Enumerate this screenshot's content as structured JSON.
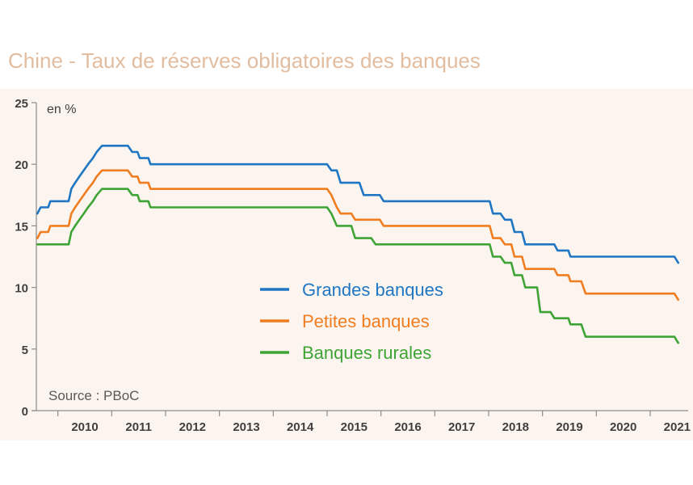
{
  "title": "Chine - Taux de réserves obligatoires des banques",
  "unit_label": "en %",
  "source": "Source : PBoC",
  "chart_data": {
    "type": "line",
    "title": "Chine - Taux de réserves obligatoires des banques",
    "ylabel": "en %",
    "xlabel": "",
    "ylim": [
      0,
      25
    ],
    "xlim": [
      2009.6,
      2021.6
    ],
    "y_ticks": [
      0,
      5,
      10,
      15,
      20,
      25
    ],
    "x_tick_labels": [
      "2010",
      "2011",
      "2012",
      "2013",
      "2014",
      "2015",
      "2016",
      "2017",
      "2018",
      "2019",
      "2020",
      "2021"
    ],
    "legend_position": "center-right",
    "grid": false,
    "series": [
      {
        "name": "Grandes banques",
        "color": "#1f77c4",
        "points": [
          [
            2009.62,
            16.0
          ],
          [
            2009.68,
            16.5
          ],
          [
            2009.82,
            16.5
          ],
          [
            2009.86,
            17.0
          ],
          [
            2010.2,
            17.0
          ],
          [
            2010.25,
            18.0
          ],
          [
            2010.32,
            18.5
          ],
          [
            2010.4,
            19.0
          ],
          [
            2010.48,
            19.5
          ],
          [
            2010.56,
            20.0
          ],
          [
            2010.65,
            20.5
          ],
          [
            2010.72,
            21.0
          ],
          [
            2010.82,
            21.5
          ],
          [
            2011.3,
            21.5
          ],
          [
            2011.38,
            21.0
          ],
          [
            2011.48,
            21.0
          ],
          [
            2011.52,
            20.5
          ],
          [
            2011.68,
            20.5
          ],
          [
            2011.72,
            20.0
          ],
          [
            2015.0,
            20.0
          ],
          [
            2015.08,
            19.5
          ],
          [
            2015.18,
            19.5
          ],
          [
            2015.25,
            18.5
          ],
          [
            2015.6,
            18.5
          ],
          [
            2015.68,
            17.5
          ],
          [
            2015.98,
            17.5
          ],
          [
            2016.05,
            17.0
          ],
          [
            2018.02,
            17.0
          ],
          [
            2018.08,
            16.0
          ],
          [
            2018.22,
            16.0
          ],
          [
            2018.3,
            15.5
          ],
          [
            2018.42,
            15.5
          ],
          [
            2018.48,
            14.5
          ],
          [
            2018.62,
            14.5
          ],
          [
            2018.68,
            13.5
          ],
          [
            2019.22,
            13.5
          ],
          [
            2019.28,
            13.0
          ],
          [
            2019.48,
            13.0
          ],
          [
            2019.52,
            12.5
          ],
          [
            2021.45,
            12.5
          ],
          [
            2021.52,
            12.0
          ]
        ]
      },
      {
        "name": "Petites banques",
        "color": "#f07d1f",
        "points": [
          [
            2009.62,
            14.0
          ],
          [
            2009.68,
            14.5
          ],
          [
            2009.82,
            14.5
          ],
          [
            2009.86,
            15.0
          ],
          [
            2010.2,
            15.0
          ],
          [
            2010.25,
            16.0
          ],
          [
            2010.32,
            16.5
          ],
          [
            2010.4,
            17.0
          ],
          [
            2010.48,
            17.5
          ],
          [
            2010.56,
            18.0
          ],
          [
            2010.65,
            18.5
          ],
          [
            2010.72,
            19.0
          ],
          [
            2010.82,
            19.5
          ],
          [
            2011.3,
            19.5
          ],
          [
            2011.38,
            19.0
          ],
          [
            2011.48,
            19.0
          ],
          [
            2011.52,
            18.5
          ],
          [
            2011.68,
            18.5
          ],
          [
            2011.72,
            18.0
          ],
          [
            2015.0,
            18.0
          ],
          [
            2015.08,
            17.5
          ],
          [
            2015.18,
            16.5
          ],
          [
            2015.25,
            16.0
          ],
          [
            2015.45,
            16.0
          ],
          [
            2015.52,
            15.5
          ],
          [
            2015.98,
            15.5
          ],
          [
            2016.05,
            15.0
          ],
          [
            2018.02,
            15.0
          ],
          [
            2018.08,
            14.0
          ],
          [
            2018.22,
            14.0
          ],
          [
            2018.3,
            13.5
          ],
          [
            2018.42,
            13.5
          ],
          [
            2018.48,
            12.5
          ],
          [
            2018.62,
            12.5
          ],
          [
            2018.68,
            11.5
          ],
          [
            2019.22,
            11.5
          ],
          [
            2019.28,
            11.0
          ],
          [
            2019.48,
            11.0
          ],
          [
            2019.52,
            10.5
          ],
          [
            2019.72,
            10.5
          ],
          [
            2019.8,
            9.5
          ],
          [
            2021.45,
            9.5
          ],
          [
            2021.52,
            9.0
          ]
        ]
      },
      {
        "name": "Banques rurales",
        "color": "#3ea435",
        "points": [
          [
            2009.62,
            13.5
          ],
          [
            2010.2,
            13.5
          ],
          [
            2010.25,
            14.5
          ],
          [
            2010.32,
            15.0
          ],
          [
            2010.4,
            15.5
          ],
          [
            2010.48,
            16.0
          ],
          [
            2010.56,
            16.5
          ],
          [
            2010.65,
            17.0
          ],
          [
            2010.72,
            17.5
          ],
          [
            2010.82,
            18.0
          ],
          [
            2011.3,
            18.0
          ],
          [
            2011.38,
            17.5
          ],
          [
            2011.48,
            17.5
          ],
          [
            2011.52,
            17.0
          ],
          [
            2011.68,
            17.0
          ],
          [
            2011.72,
            16.5
          ],
          [
            2015.0,
            16.5
          ],
          [
            2015.08,
            16.0
          ],
          [
            2015.18,
            15.0
          ],
          [
            2015.45,
            15.0
          ],
          [
            2015.52,
            14.0
          ],
          [
            2015.82,
            14.0
          ],
          [
            2015.9,
            13.5
          ],
          [
            2018.02,
            13.5
          ],
          [
            2018.08,
            12.5
          ],
          [
            2018.22,
            12.5
          ],
          [
            2018.3,
            12.0
          ],
          [
            2018.42,
            12.0
          ],
          [
            2018.48,
            11.0
          ],
          [
            2018.62,
            11.0
          ],
          [
            2018.68,
            10.0
          ],
          [
            2018.9,
            10.0
          ],
          [
            2018.96,
            8.0
          ],
          [
            2019.15,
            8.0
          ],
          [
            2019.22,
            7.5
          ],
          [
            2019.48,
            7.5
          ],
          [
            2019.52,
            7.0
          ],
          [
            2019.72,
            7.0
          ],
          [
            2019.8,
            6.0
          ],
          [
            2021.45,
            6.0
          ],
          [
            2021.52,
            5.5
          ]
        ]
      }
    ]
  }
}
